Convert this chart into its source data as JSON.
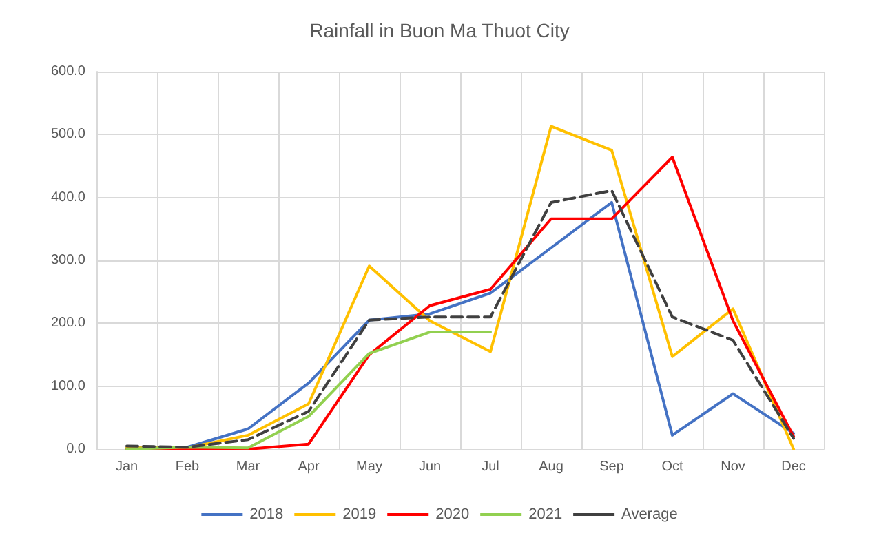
{
  "chart_data": {
    "type": "line",
    "title": "Rainfall in Buon Ma Thuot City",
    "categories": [
      "Jan",
      "Feb",
      "Mar",
      "Apr",
      "May",
      "Jun",
      "Jul",
      "Aug",
      "Sep",
      "Oct",
      "Nov",
      "Dec"
    ],
    "ylim": [
      0,
      600
    ],
    "yticks": [
      {
        "value": 0,
        "label": "0.0"
      },
      {
        "value": 100,
        "label": "100.0"
      },
      {
        "value": 200,
        "label": "200.0"
      },
      {
        "value": 300,
        "label": "300.0"
      },
      {
        "value": 400,
        "label": "400.0"
      },
      {
        "value": 500,
        "label": "500.0"
      },
      {
        "value": 600,
        "label": "600.0"
      }
    ],
    "grid": true,
    "legend": "bottom",
    "marker": "none",
    "line_style": "solid",
    "series": [
      {
        "name": "2018",
        "color": "#4472c4",
        "values": [
          2,
          3,
          32,
          105,
          205,
          215,
          248,
          320,
          392,
          22,
          88,
          25
        ]
      },
      {
        "name": "2019",
        "color": "#ffc000",
        "values": [
          2,
          2,
          22,
          72,
          291,
          204,
          155,
          513,
          475,
          147,
          223,
          0
        ]
      },
      {
        "name": "2020",
        "color": "#ff0000",
        "values": [
          0,
          0,
          0,
          8,
          150,
          228,
          254,
          366,
          366,
          464,
          204,
          20
        ]
      },
      {
        "name": "2021",
        "color": "#92d050",
        "values": [
          0,
          3,
          2,
          52,
          152,
          186,
          186,
          null,
          null,
          null,
          null,
          null
        ]
      },
      {
        "name": "Average",
        "color": "#404040",
        "line_style": "dashed",
        "values": [
          5,
          3,
          15,
          60,
          205,
          210,
          210,
          392,
          411,
          210,
          173,
          17
        ]
      }
    ]
  }
}
